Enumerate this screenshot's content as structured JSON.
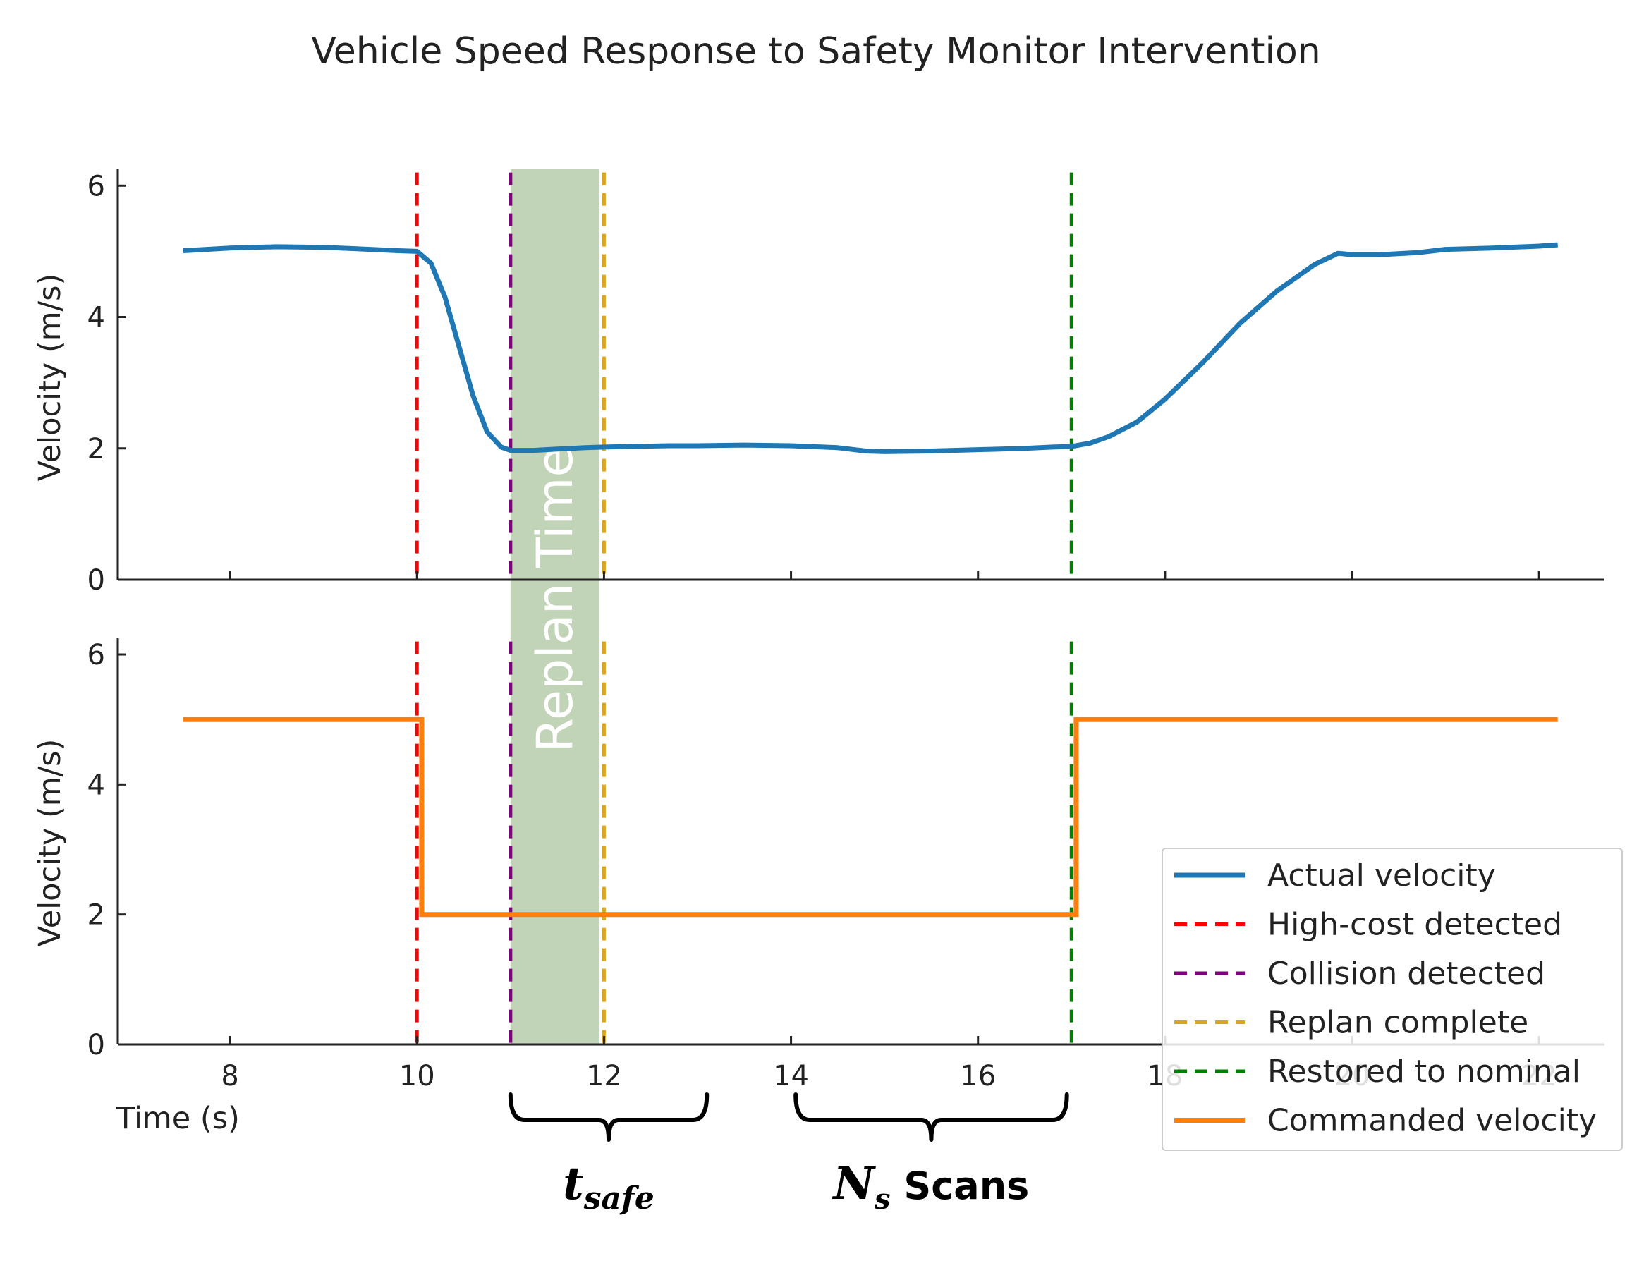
{
  "chart_data": [
    {
      "type": "line",
      "panel": "top",
      "title": "Vehicle Speed Response to Safety Monitor Intervention",
      "ylabel": "Velocity (m/s)",
      "xlim": [
        6.8,
        22.7
      ],
      "ylim": [
        0,
        6.25
      ],
      "yticks": [
        0,
        2,
        4,
        6
      ],
      "series": [
        {
          "name": "Actual velocity",
          "color": "#1f77b4",
          "x": [
            7.5,
            8.0,
            8.5,
            9.0,
            9.5,
            9.8,
            10.0,
            10.15,
            10.3,
            10.45,
            10.6,
            10.75,
            10.9,
            11.0,
            11.25,
            11.5,
            11.8,
            12.0,
            12.3,
            12.7,
            13.0,
            13.5,
            14.0,
            14.5,
            14.8,
            15.0,
            15.5,
            16.0,
            16.5,
            16.8,
            17.0,
            17.2,
            17.4,
            17.7,
            18.0,
            18.4,
            18.8,
            19.2,
            19.6,
            19.85,
            20.0,
            20.3,
            20.7,
            21.0,
            21.5,
            22.0,
            22.2
          ],
          "y": [
            5.01,
            5.05,
            5.07,
            5.06,
            5.03,
            5.01,
            5.0,
            4.82,
            4.3,
            3.55,
            2.8,
            2.25,
            2.02,
            1.97,
            1.97,
            1.99,
            2.01,
            2.02,
            2.03,
            2.04,
            2.04,
            2.05,
            2.04,
            2.01,
            1.96,
            1.95,
            1.96,
            1.98,
            2.0,
            2.02,
            2.03,
            2.08,
            2.18,
            2.4,
            2.75,
            3.3,
            3.9,
            4.4,
            4.8,
            4.97,
            4.95,
            4.95,
            4.98,
            5.03,
            5.05,
            5.08,
            5.1
          ]
        }
      ]
    },
    {
      "type": "line",
      "panel": "bottom",
      "ylabel": "Velocity (m/s)",
      "xlabel": "Time (s)",
      "xlim": [
        6.8,
        22.7
      ],
      "ylim": [
        0,
        6.25
      ],
      "xticks": [
        8,
        10,
        12,
        14,
        16,
        18,
        20,
        22
      ],
      "yticks": [
        0,
        2,
        4,
        6
      ],
      "series": [
        {
          "name": "Commanded velocity",
          "color": "#ff7f0e",
          "x": [
            7.5,
            10.05,
            10.05,
            17.05,
            17.05,
            22.2
          ],
          "y": [
            5.0,
            5.0,
            2.0,
            2.0,
            5.0,
            5.0
          ]
        }
      ]
    }
  ],
  "events": [
    {
      "name": "High-cost detected",
      "time": 10.0,
      "color": "#ff0000"
    },
    {
      "name": "Collision detected",
      "time": 11.0,
      "color": "#800080"
    },
    {
      "name": "Replan complete",
      "time": 12.0,
      "color": "#daa520"
    },
    {
      "name": "Restored to nominal",
      "time": 17.0,
      "color": "#008000"
    }
  ],
  "replan_band": {
    "label": "Replan Time",
    "start": 11.0,
    "end": 11.95,
    "color": "#c2d4b8"
  },
  "legend": {
    "placement": "lower-right",
    "entries": [
      {
        "label": "Actual velocity",
        "color": "#1f77b4",
        "style": "solid"
      },
      {
        "label": "High-cost detected",
        "color": "#ff0000",
        "style": "dashed"
      },
      {
        "label": "Collision detected",
        "color": "#800080",
        "style": "dashed"
      },
      {
        "label": "Replan complete",
        "color": "#daa520",
        "style": "dashed"
      },
      {
        "label": "Restored to nominal",
        "color": "#008000",
        "style": "dashed"
      },
      {
        "label": "Commanded velocity",
        "color": "#ff7f0e",
        "style": "solid"
      }
    ]
  },
  "annotations": [
    {
      "label_main": "t",
      "label_sub": "safe",
      "start": 11.0,
      "end": 13.1
    },
    {
      "label_main": "N",
      "label_sub": "s",
      "label_rest": " Scans",
      "start": 14.05,
      "end": 16.95
    }
  ]
}
